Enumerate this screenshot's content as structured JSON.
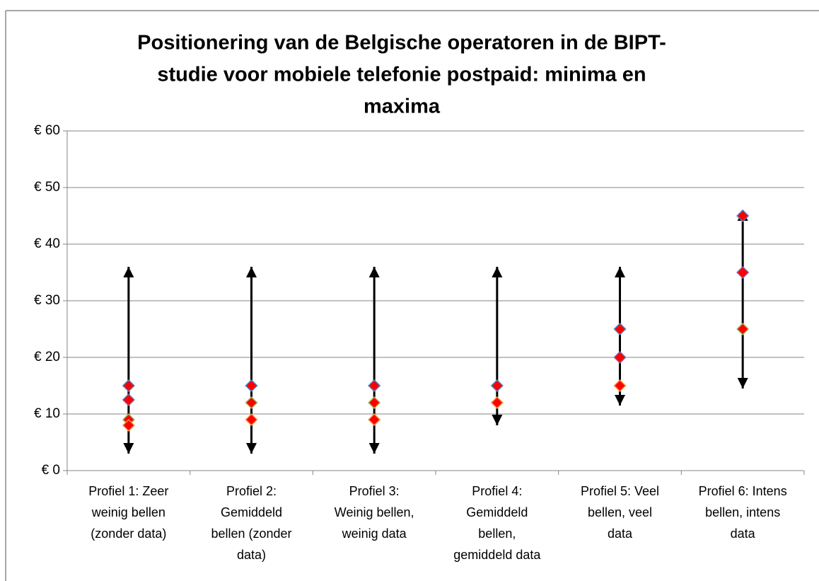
{
  "chart_data": {
    "type": "range-scatter",
    "title": [
      "Positionering van de Belgische operatoren in de BIPT-",
      "studie voor mobiele telefonie postpaid: minima en",
      "maxima"
    ],
    "categories": [
      [
        "Profiel 1: Zeer",
        "weinig bellen",
        "(zonder data)"
      ],
      [
        "Profiel 2:",
        "Gemiddeld",
        "bellen (zonder",
        "data)"
      ],
      [
        "Profiel 3:",
        "Weinig bellen,",
        "weinig data"
      ],
      [
        "Profiel 4:",
        "Gemiddeld",
        "bellen,",
        "gemiddeld data"
      ],
      [
        "Profiel 5: Veel",
        "bellen, veel",
        "data"
      ],
      [
        "Profiel 6: Intens",
        "bellen, intens",
        "data"
      ]
    ],
    "ranges": {
      "low": [
        3,
        3,
        3,
        8,
        11.5,
        14.5
      ],
      "high": [
        36,
        36,
        36,
        36,
        36,
        46
      ],
      "color": "#000000"
    },
    "series": [
      {
        "color": "#ff0000",
        "edge": "#4f81bd",
        "values": [
          15,
          15,
          15,
          15,
          25,
          45
        ]
      },
      {
        "color": "#ff0000",
        "edge": "#8064a2",
        "values": [
          12.5,
          null,
          null,
          null,
          20,
          35
        ]
      },
      {
        "color": "#ff0000",
        "edge": "#9bbb59",
        "values": [
          9,
          12,
          12,
          null,
          null,
          25
        ]
      },
      {
        "color": "#ff0000",
        "edge": "#f79646",
        "values": [
          8,
          9,
          9,
          12,
          15,
          null
        ]
      }
    ],
    "ylim": [
      0,
      60
    ],
    "yticks": [
      {
        "value": 0,
        "label": "€ 0"
      },
      {
        "value": 10,
        "label": "€ 10"
      },
      {
        "value": 20,
        "label": "€ 20"
      },
      {
        "value": 30,
        "label": "€ 30"
      },
      {
        "value": 40,
        "label": "€ 40"
      },
      {
        "value": 50,
        "label": "€ 50"
      },
      {
        "value": 60,
        "label": "€ 60"
      }
    ],
    "grid": true
  }
}
